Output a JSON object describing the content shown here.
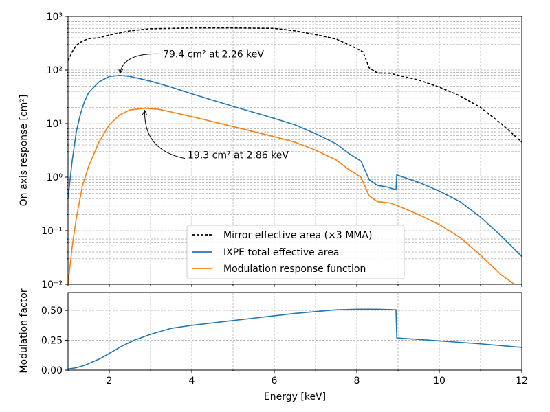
{
  "chart_data": [
    {
      "type": "line",
      "xlabel": "",
      "ylabel": "On axis response [cm²]",
      "xlim": [
        1,
        12
      ],
      "ylim": [
        0.01,
        1000
      ],
      "yscale": "log",
      "grid": true,
      "legend": "lower-center",
      "yticks": [
        "10⁻²",
        "10⁻¹",
        "10⁰",
        "10¹",
        "10²",
        "10³"
      ],
      "series": [
        {
          "name": "Mirror effective area (×3 MMA)",
          "color": "#000000",
          "style": "dashed",
          "x": [
            1.0,
            1.1,
            1.2,
            1.35,
            1.5,
            1.75,
            2.0,
            2.5,
            3.0,
            4.0,
            5.0,
            6.0,
            6.5,
            7.0,
            7.5,
            7.8,
            8.0,
            8.15,
            8.3,
            8.5,
            8.8,
            9.0,
            9.5,
            10.0,
            10.5,
            11.0,
            11.5,
            12.0
          ],
          "y": [
            150,
            220,
            290,
            350,
            385,
            400,
            450,
            540,
            590,
            610,
            610,
            600,
            540,
            460,
            380,
            300,
            250,
            220,
            110,
            88,
            87,
            80,
            65,
            48,
            33,
            20,
            10,
            4.5
          ]
        },
        {
          "name": "IXPE total effective area",
          "color": "#1f77b4",
          "style": "solid",
          "x": [
            1.0,
            1.1,
            1.2,
            1.3,
            1.4,
            1.5,
            1.75,
            2.0,
            2.26,
            2.5,
            3.0,
            3.5,
            4.0,
            5.0,
            6.0,
            6.5,
            7.0,
            7.5,
            7.8,
            8.1,
            8.3,
            8.5,
            8.75,
            8.95,
            8.97,
            9.5,
            10.0,
            10.5,
            11.0,
            11.5,
            12.0
          ],
          "y": [
            0.4,
            2.0,
            7.0,
            15,
            26,
            38,
            60,
            76,
            79.4,
            76,
            62,
            48,
            36,
            21,
            12.5,
            9.5,
            6.5,
            4.2,
            2.8,
            2.0,
            0.9,
            0.7,
            0.65,
            0.58,
            1.1,
            0.8,
            0.55,
            0.35,
            0.18,
            0.08,
            0.033
          ]
        },
        {
          "name": "Modulation response function",
          "color": "#ff7f0e",
          "style": "solid",
          "x": [
            1.0,
            1.1,
            1.2,
            1.35,
            1.5,
            1.75,
            2.0,
            2.25,
            2.5,
            2.86,
            3.2,
            3.5,
            4.0,
            5.0,
            6.0,
            6.5,
            7.0,
            7.5,
            7.8,
            8.1,
            8.3,
            8.5,
            8.8,
            9.0,
            9.5,
            10.0,
            10.5,
            11.0,
            11.5,
            11.95
          ],
          "y": [
            0.01,
            0.05,
            0.17,
            0.7,
            1.6,
            4.5,
            9.5,
            14.5,
            18,
            19.3,
            18.5,
            16.5,
            13.5,
            8.8,
            5.7,
            4.5,
            3.2,
            2.1,
            1.4,
            1.0,
            0.45,
            0.35,
            0.33,
            0.29,
            0.2,
            0.13,
            0.075,
            0.035,
            0.015,
            0.0085
          ]
        }
      ],
      "annotations": [
        {
          "text": "79.4 cm² at 2.26 keV",
          "x": 2.26,
          "y": 79.4,
          "text_x": 3.3,
          "text_y": 200
        },
        {
          "text": "19.3 cm² at 2.86 keV",
          "x": 2.86,
          "y": 19.3,
          "text_x": 3.9,
          "text_y": 2.6
        }
      ]
    },
    {
      "type": "line",
      "xlabel": "Energy [keV]",
      "ylabel": "Modulation factor",
      "xlim": [
        1,
        12
      ],
      "ylim": [
        0,
        0.65
      ],
      "grid": true,
      "xticks": [
        "2",
        "4",
        "6",
        "8",
        "10",
        "12"
      ],
      "yticks": [
        "0.00",
        "0.25",
        "0.50"
      ],
      "series": [
        {
          "name": "",
          "color": "#1f77b4",
          "style": "solid",
          "x": [
            1.0,
            1.2,
            1.4,
            1.6,
            1.8,
            2.0,
            2.3,
            2.6,
            3.0,
            3.5,
            4.0,
            5.0,
            6.0,
            6.5,
            7.0,
            7.5,
            8.0,
            8.5,
            8.95,
            8.97,
            10.0,
            11.0,
            12.0
          ],
          "y": [
            0.01,
            0.02,
            0.04,
            0.07,
            0.1,
            0.14,
            0.2,
            0.25,
            0.3,
            0.35,
            0.375,
            0.415,
            0.455,
            0.475,
            0.49,
            0.505,
            0.51,
            0.51,
            0.505,
            0.27,
            0.245,
            0.22,
            0.19
          ]
        }
      ]
    }
  ]
}
